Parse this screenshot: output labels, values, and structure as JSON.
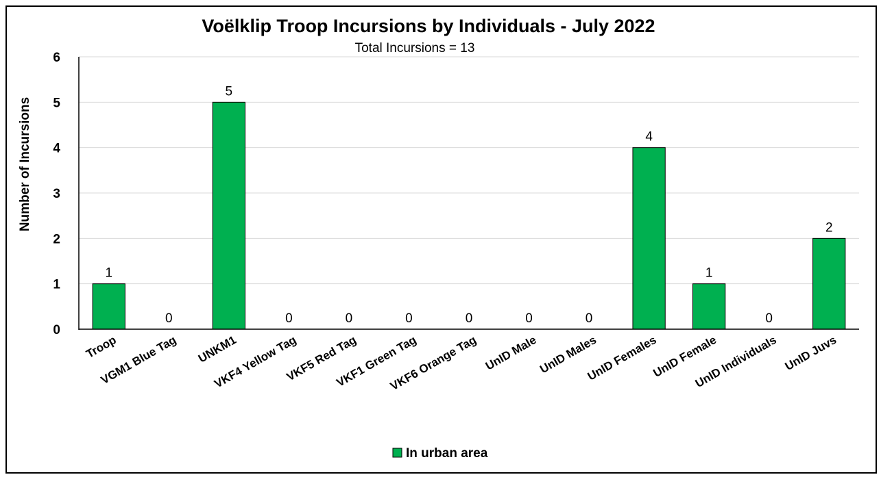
{
  "chart_data": {
    "type": "bar",
    "title": "Voëlklip Troop Incursions by Individuals - July 2022",
    "subtitle": "Total Incursions =  13",
    "xlabel": "",
    "ylabel": "Number of Incursions",
    "ylim": [
      0,
      6
    ],
    "yticks": [
      0,
      1,
      2,
      3,
      4,
      5,
      6
    ],
    "grid": true,
    "legend_position": "bottom",
    "categories": [
      "Troop",
      "VGM1 Blue Tag",
      "UNKM1",
      "VKF4 Yellow Tag",
      "VKF5 Red Tag",
      "VKF1 Green Tag",
      "VKF6 Orange Tag",
      "UnID Male",
      "UnID Males",
      "UnID Females",
      "UnID Female",
      "UnID Individuals",
      "UnID Juvs"
    ],
    "series": [
      {
        "name": "In urban area",
        "color": "#00b050",
        "values": [
          1,
          0,
          5,
          0,
          0,
          0,
          0,
          0,
          0,
          4,
          1,
          0,
          2
        ],
        "data_labels": [
          "1",
          "0",
          "5",
          "0",
          "0",
          "0",
          "0",
          "0",
          "0",
          "4",
          "1",
          "0",
          "2"
        ]
      }
    ]
  }
}
